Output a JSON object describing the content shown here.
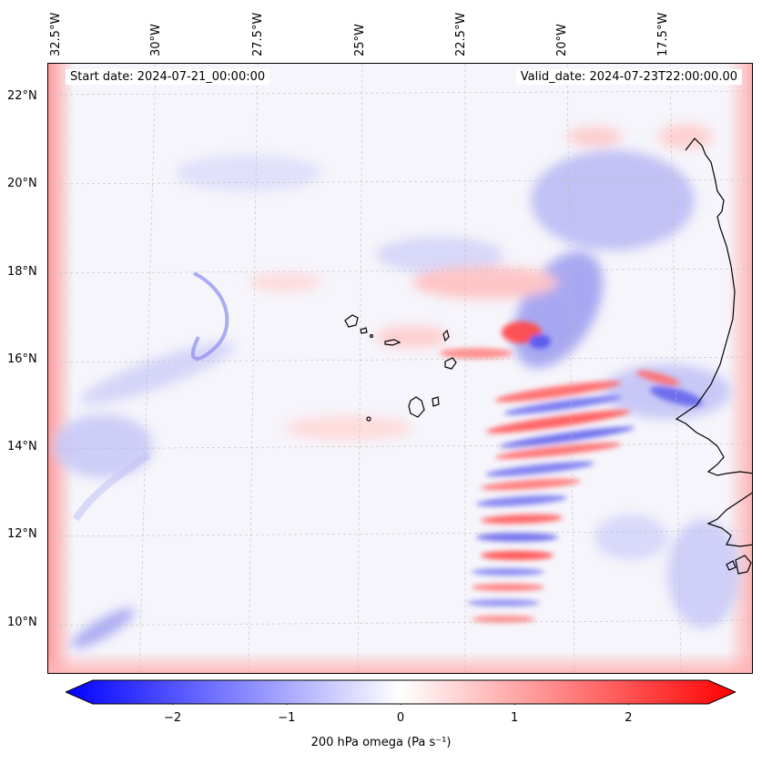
{
  "map": {
    "start_date": "Start date: 2024-07-21_00:00:00",
    "valid_date": "Valid_date: 2024-07-23T22:00:00.00",
    "lon_labels": [
      "32.5°W",
      "30°W",
      "27.5°W",
      "25°W",
      "22.5°W",
      "20°W",
      "17.5°W"
    ],
    "lat_labels": [
      "22°N",
      "20°N",
      "18°N",
      "16°N",
      "14°N",
      "12°N",
      "10°N"
    ],
    "field": "200 hPa omega",
    "land_outline_color": "#000000",
    "gridline_color": "#bdbdbd",
    "islands": [
      "Cape Verde"
    ]
  },
  "colorbar": {
    "colormap": "bwr",
    "color_min": "#0000ff",
    "color_mid": "#ffffff",
    "color_max": "#ff0000",
    "vmin": -2.7,
    "vmax": 2.7,
    "extend": "both",
    "tick_values": [
      -2,
      -1,
      0,
      1,
      2
    ],
    "tick_labels": [
      "−2",
      "−1",
      "0",
      "1",
      "2"
    ],
    "label": "200 hPa omega (Pa s⁻¹)"
  }
}
